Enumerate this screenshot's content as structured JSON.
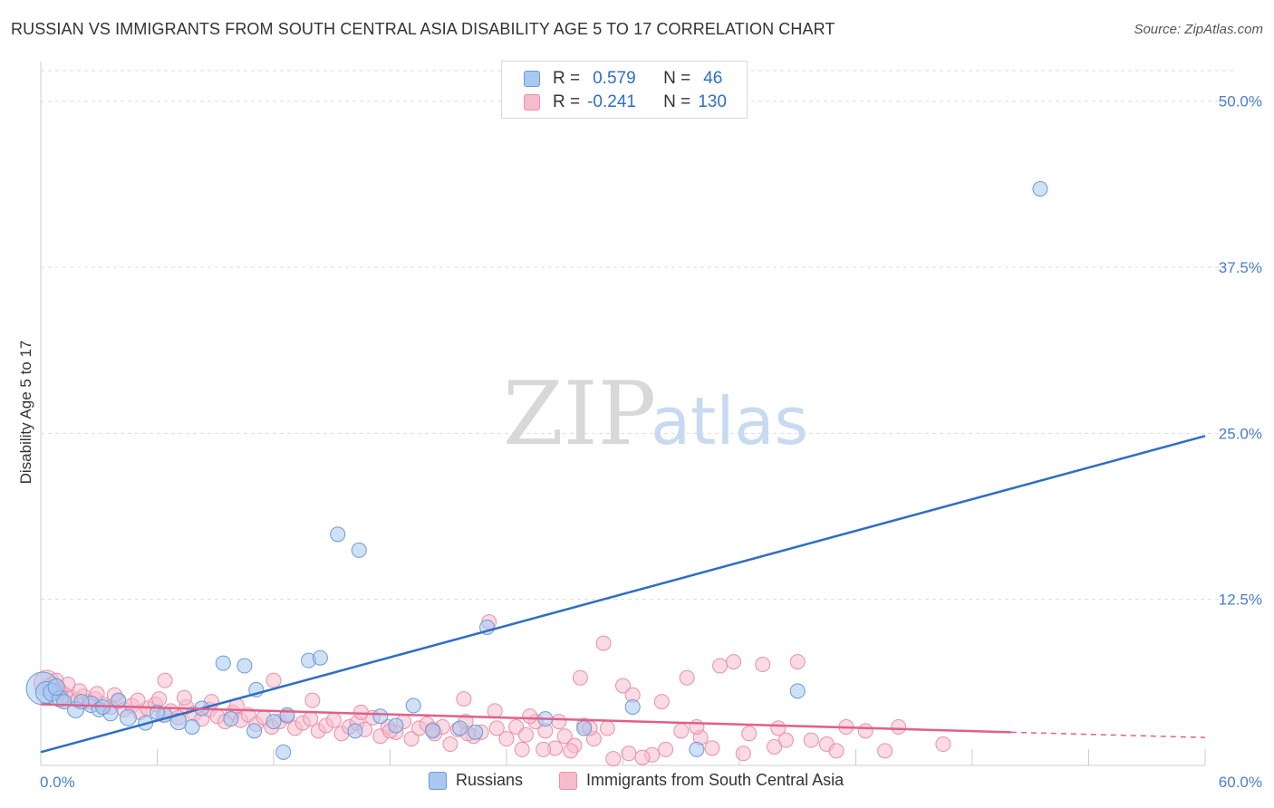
{
  "title": "RUSSIAN VS IMMIGRANTS FROM SOUTH CENTRAL ASIA DISABILITY AGE 5 TO 17 CORRELATION CHART",
  "source": "Source: ZipAtlas.com",
  "watermark": {
    "zip": "ZIP",
    "atlas": "atlas"
  },
  "legend": {
    "rows": [
      {
        "r_label": "R =",
        "r_value": "0.579",
        "n_label": "N =",
        "n_value": "46",
        "color": "#a8c8f0",
        "border": "#6a9ad8"
      },
      {
        "r_label": "R =",
        "r_value": "-0.241",
        "n_label": "N =",
        "n_value": "130",
        "color": "#f6bccc",
        "border": "#e890aa"
      }
    ]
  },
  "bottom_legend": [
    {
      "label": "Russians",
      "color": "#a8c8f0",
      "border": "#6a9ad8"
    },
    {
      "label": "Immigrants from South Central Asia",
      "color": "#f6bccc",
      "border": "#e890aa"
    }
  ],
  "chart_data": {
    "type": "scatter",
    "title": "RUSSIAN VS IMMIGRANTS FROM SOUTH CENTRAL ASIA DISABILITY AGE 5 TO 17 CORRELATION CHART",
    "xlabel": "",
    "ylabel": "Disability Age 5 to 17",
    "xlim": [
      0,
      60
    ],
    "ylim": [
      0,
      50
    ],
    "x_tick_labels": [
      "0.0%",
      "60.0%"
    ],
    "y_ticks": [
      12.5,
      25.0,
      37.5,
      50.0
    ],
    "y_tick_labels": [
      "12.5%",
      "25.0%",
      "37.5%",
      "50.0%"
    ],
    "grid": true,
    "legend_position": "top-center",
    "series": [
      {
        "name": "Russians",
        "color": "#a8c8f0",
        "stroke": "#6a9ad8",
        "trend": {
          "x0": 0,
          "y0": 1.0,
          "x1": 60,
          "y1": 24.8,
          "color": "#2e6fc4"
        },
        "points": [
          [
            0.1,
            5.8,
            18
          ],
          [
            0.3,
            5.5,
            12
          ],
          [
            0.6,
            5.5,
            10
          ],
          [
            1.0,
            5.0,
            9
          ],
          [
            1.2,
            4.8,
            8
          ],
          [
            1.8,
            4.2,
            9
          ],
          [
            2.6,
            4.6,
            9
          ],
          [
            3.0,
            4.2,
            8
          ],
          [
            3.6,
            3.9,
            8
          ],
          [
            4.5,
            3.6,
            9
          ],
          [
            5.4,
            3.2,
            8
          ],
          [
            6.4,
            3.8,
            8
          ],
          [
            7.1,
            3.3,
            9
          ],
          [
            7.8,
            2.9,
            8
          ],
          [
            9.8,
            3.5,
            8
          ],
          [
            11.0,
            2.6,
            8
          ],
          [
            11.1,
            5.7,
            8
          ],
          [
            12.0,
            3.3,
            8
          ],
          [
            12.7,
            3.8,
            8
          ],
          [
            9.4,
            7.7,
            8
          ],
          [
            10.5,
            7.5,
            8
          ],
          [
            13.8,
            7.9,
            8
          ],
          [
            14.4,
            8.1,
            8
          ],
          [
            15.3,
            17.4,
            8
          ],
          [
            16.4,
            16.2,
            8
          ],
          [
            16.2,
            2.6,
            8
          ],
          [
            17.5,
            3.7,
            8
          ],
          [
            19.2,
            4.5,
            8
          ],
          [
            20.2,
            2.6,
            8
          ],
          [
            21.6,
            2.8,
            8
          ],
          [
            22.4,
            2.5,
            8
          ],
          [
            23.0,
            10.4,
            8
          ],
          [
            26.0,
            3.5,
            8
          ],
          [
            28.0,
            2.8,
            8
          ],
          [
            30.5,
            4.4,
            8
          ],
          [
            33.8,
            1.2,
            8
          ],
          [
            39.0,
            5.6,
            8
          ],
          [
            51.5,
            43.4,
            8
          ],
          [
            2.1,
            4.8,
            8
          ],
          [
            3.2,
            4.4,
            8
          ],
          [
            4.0,
            4.9,
            8
          ],
          [
            6.0,
            4.0,
            8
          ],
          [
            8.3,
            4.3,
            8
          ],
          [
            12.5,
            1.0,
            8
          ],
          [
            18.3,
            3.0,
            8
          ],
          [
            0.8,
            5.9,
            9
          ]
        ]
      },
      {
        "name": "Immigrants from South Central Asia",
        "color": "#f6bccc",
        "stroke": "#e890aa",
        "trend": {
          "x0": 0,
          "y0": 4.6,
          "x1": 50,
          "y1": 2.5,
          "dash_x1": 60,
          "dash_y1": 2.1,
          "color": "#e0608a"
        },
        "points": [
          [
            0.3,
            6.2,
            14
          ],
          [
            0.6,
            5.9,
            11
          ],
          [
            0.9,
            5.6,
            10
          ],
          [
            1.2,
            5.3,
            9
          ],
          [
            1.5,
            5.1,
            9
          ],
          [
            1.9,
            4.9,
            8
          ],
          [
            2.2,
            5.2,
            8
          ],
          [
            2.5,
            4.8,
            8
          ],
          [
            2.8,
            5.0,
            8
          ],
          [
            3.2,
            4.6,
            8
          ],
          [
            3.6,
            4.4,
            8
          ],
          [
            4.0,
            4.8,
            8
          ],
          [
            4.3,
            4.2,
            8
          ],
          [
            4.7,
            4.5,
            8
          ],
          [
            5.1,
            4.0,
            8
          ],
          [
            5.5,
            4.3,
            8
          ],
          [
            5.9,
            4.6,
            8
          ],
          [
            6.3,
            3.8,
            8
          ],
          [
            6.7,
            4.1,
            8
          ],
          [
            7.1,
            3.6,
            8
          ],
          [
            7.5,
            4.4,
            8
          ],
          [
            7.9,
            3.9,
            8
          ],
          [
            8.3,
            3.5,
            8
          ],
          [
            8.7,
            4.2,
            8
          ],
          [
            9.1,
            3.7,
            8
          ],
          [
            9.5,
            3.3,
            8
          ],
          [
            9.9,
            4.0,
            8
          ],
          [
            10.3,
            3.4,
            8
          ],
          [
            10.7,
            3.8,
            8
          ],
          [
            11.1,
            3.1,
            8
          ],
          [
            11.5,
            3.6,
            8
          ],
          [
            11.9,
            2.9,
            8
          ],
          [
            12.3,
            3.3,
            8
          ],
          [
            12.7,
            3.7,
            8
          ],
          [
            13.1,
            2.8,
            8
          ],
          [
            13.5,
            3.2,
            8
          ],
          [
            13.9,
            3.5,
            8
          ],
          [
            14.3,
            2.6,
            8
          ],
          [
            14.7,
            3.0,
            8
          ],
          [
            15.1,
            3.4,
            8
          ],
          [
            15.5,
            2.4,
            8
          ],
          [
            15.9,
            2.9,
            8
          ],
          [
            16.3,
            3.2,
            8
          ],
          [
            16.7,
            2.7,
            8
          ],
          [
            17.1,
            3.6,
            8
          ],
          [
            17.5,
            2.2,
            8
          ],
          [
            17.9,
            2.9,
            8
          ],
          [
            18.3,
            2.5,
            8
          ],
          [
            18.7,
            3.3,
            8
          ],
          [
            19.1,
            2.0,
            8
          ],
          [
            19.5,
            2.8,
            8
          ],
          [
            19.9,
            3.1,
            8
          ],
          [
            20.3,
            2.4,
            8
          ],
          [
            20.7,
            2.9,
            8
          ],
          [
            21.1,
            1.6,
            8
          ],
          [
            21.5,
            2.7,
            8
          ],
          [
            21.9,
            3.3,
            8
          ],
          [
            22.3,
            2.2,
            8
          ],
          [
            22.7,
            2.5,
            8
          ],
          [
            23.1,
            10.8,
            8
          ],
          [
            23.5,
            2.8,
            8
          ],
          [
            24.0,
            2.0,
            8
          ],
          [
            24.5,
            2.9,
            8
          ],
          [
            25.0,
            2.3,
            8
          ],
          [
            25.5,
            3.3,
            8
          ],
          [
            26.0,
            2.6,
            8
          ],
          [
            26.5,
            1.3,
            8
          ],
          [
            27.0,
            2.2,
            8
          ],
          [
            27.5,
            1.5,
            8
          ],
          [
            28.0,
            3.0,
            8
          ],
          [
            28.5,
            2.0,
            8
          ],
          [
            29.0,
            9.2,
            8
          ],
          [
            29.5,
            0.5,
            8
          ],
          [
            30.0,
            6.0,
            8
          ],
          [
            30.5,
            5.3,
            8
          ],
          [
            31.5,
            0.8,
            8
          ],
          [
            32.0,
            4.8,
            8
          ],
          [
            33.0,
            2.6,
            8
          ],
          [
            34.0,
            2.1,
            8
          ],
          [
            35.0,
            7.5,
            8
          ],
          [
            35.7,
            7.8,
            8
          ],
          [
            36.5,
            2.4,
            8
          ],
          [
            37.2,
            7.6,
            8
          ],
          [
            38.0,
            2.8,
            8
          ],
          [
            39.0,
            7.8,
            8
          ],
          [
            39.7,
            1.9,
            8
          ],
          [
            40.5,
            1.6,
            8
          ],
          [
            41.5,
            2.9,
            8
          ],
          [
            42.5,
            2.6,
            8
          ],
          [
            43.5,
            1.1,
            8
          ],
          [
            6.4,
            6.4,
            8
          ],
          [
            18.0,
            2.6,
            8
          ],
          [
            16.5,
            4.0,
            8
          ],
          [
            14.0,
            4.9,
            8
          ],
          [
            12.0,
            6.4,
            8
          ],
          [
            20.2,
            2.7,
            8
          ],
          [
            22.0,
            2.4,
            8
          ],
          [
            24.8,
            1.2,
            8
          ],
          [
            25.9,
            1.2,
            8
          ],
          [
            26.7,
            3.3,
            8
          ],
          [
            27.3,
            1.1,
            8
          ],
          [
            28.3,
            2.8,
            8
          ],
          [
            30.3,
            0.9,
            8
          ],
          [
            31.0,
            0.6,
            8
          ],
          [
            33.3,
            6.6,
            8
          ],
          [
            34.6,
            1.3,
            8
          ],
          [
            36.2,
            0.9,
            8
          ],
          [
            38.4,
            1.9,
            8
          ],
          [
            21.8,
            5.0,
            8
          ],
          [
            23.4,
            4.1,
            8
          ],
          [
            25.2,
            3.7,
            8
          ],
          [
            27.8,
            6.6,
            8
          ],
          [
            29.2,
            2.8,
            8
          ],
          [
            32.2,
            1.2,
            8
          ],
          [
            33.8,
            2.9,
            8
          ],
          [
            37.8,
            1.4,
            8
          ],
          [
            41.0,
            1.1,
            8
          ],
          [
            44.2,
            2.9,
            8
          ],
          [
            46.5,
            1.6,
            8
          ],
          [
            0.8,
            6.4,
            8
          ],
          [
            1.0,
            5.5,
            8
          ],
          [
            1.4,
            6.1,
            8
          ],
          [
            2.0,
            5.6,
            8
          ],
          [
            2.9,
            5.4,
            8
          ],
          [
            3.8,
            5.3,
            8
          ],
          [
            5.0,
            4.9,
            8
          ],
          [
            6.1,
            5.0,
            8
          ],
          [
            7.4,
            5.1,
            8
          ],
          [
            8.8,
            4.8,
            8
          ],
          [
            10.1,
            4.5,
            8
          ]
        ]
      }
    ]
  }
}
